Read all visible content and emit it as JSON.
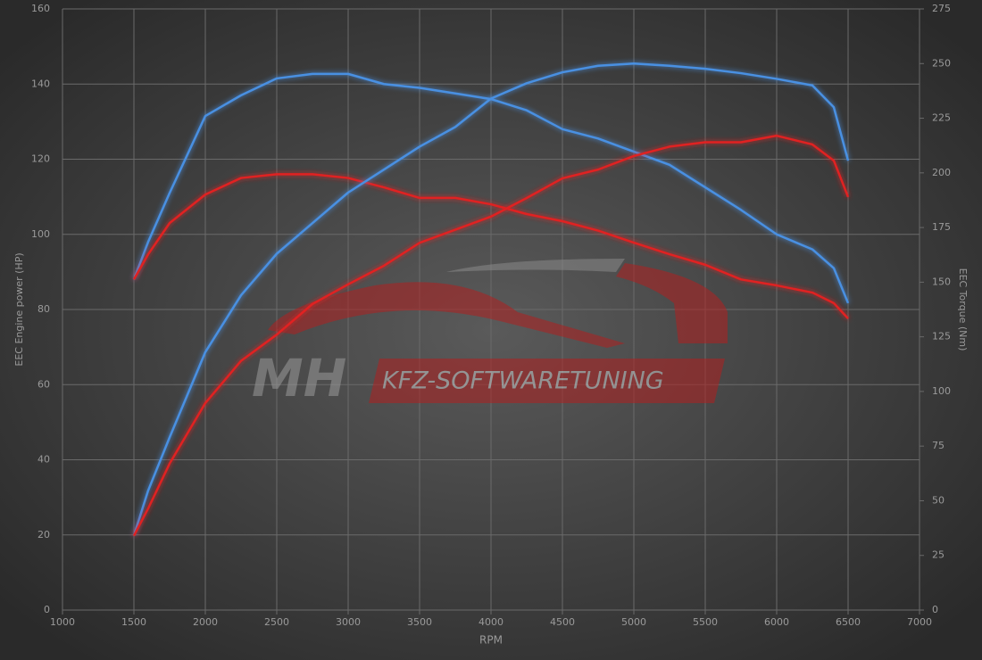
{
  "chart_data": {
    "type": "line",
    "xlabel": "RPM",
    "ylabel": "EEC Engine power (HP)",
    "y2label": "EEC Torque (Nm)",
    "watermark": {
      "logo": "MH",
      "text": "KFZ-SOFTWARETUNING"
    },
    "x": [
      1500,
      1600,
      1750,
      2000,
      2250,
      2500,
      2750,
      3000,
      3250,
      3500,
      3750,
      4000,
      4250,
      4500,
      4750,
      5000,
      5250,
      5500,
      5750,
      6000,
      6250,
      6400,
      6500
    ],
    "series": [
      {
        "color": "#4a90e2",
        "axis": "y",
        "values": [
          88,
          98,
          111,
          131.5,
          137,
          141.5,
          142.7,
          142.7,
          140,
          139,
          137.5,
          136,
          133,
          128,
          125.5,
          122,
          118.5,
          112.5,
          106.5,
          100,
          96,
          91,
          81.7
        ]
      },
      {
        "color": "#e02020",
        "axis": "y",
        "values": [
          88,
          94.7,
          103,
          110.6,
          115,
          116,
          116,
          115,
          112.5,
          109.7,
          109.7,
          108,
          105.4,
          103.5,
          101,
          97.8,
          94.7,
          91.9,
          88,
          86.4,
          84.5,
          81.7,
          77.6
        ]
      },
      {
        "color": "#4a90e2",
        "axis": "y2",
        "values": [
          34,
          54.7,
          79,
          118,
          144,
          163,
          177,
          191,
          201.5,
          212,
          221,
          234,
          241,
          246,
          249,
          250,
          249,
          247.6,
          245.6,
          243,
          240,
          230,
          205.6
        ]
      },
      {
        "color": "#e02020",
        "axis": "y2",
        "values": [
          34,
          46.5,
          67,
          94.7,
          114,
          126,
          140,
          149,
          157.5,
          168,
          174,
          180,
          188.5,
          197.5,
          201.5,
          207.7,
          212,
          214,
          214,
          217,
          213,
          205.6,
          189
        ]
      }
    ],
    "xlim": [
      1000,
      7000
    ],
    "xticks": [
      1000,
      1500,
      2000,
      2500,
      3000,
      3500,
      4000,
      4500,
      5000,
      5500,
      6000,
      6500,
      7000
    ],
    "ylim": [
      0,
      160
    ],
    "yticks": [
      0,
      20,
      40,
      60,
      80,
      100,
      120,
      140,
      160
    ],
    "y2lim": [
      0,
      275
    ],
    "y2ticks": [
      0,
      25,
      50,
      75,
      100,
      125,
      150,
      175,
      200,
      225,
      250,
      275
    ],
    "grid": true
  }
}
